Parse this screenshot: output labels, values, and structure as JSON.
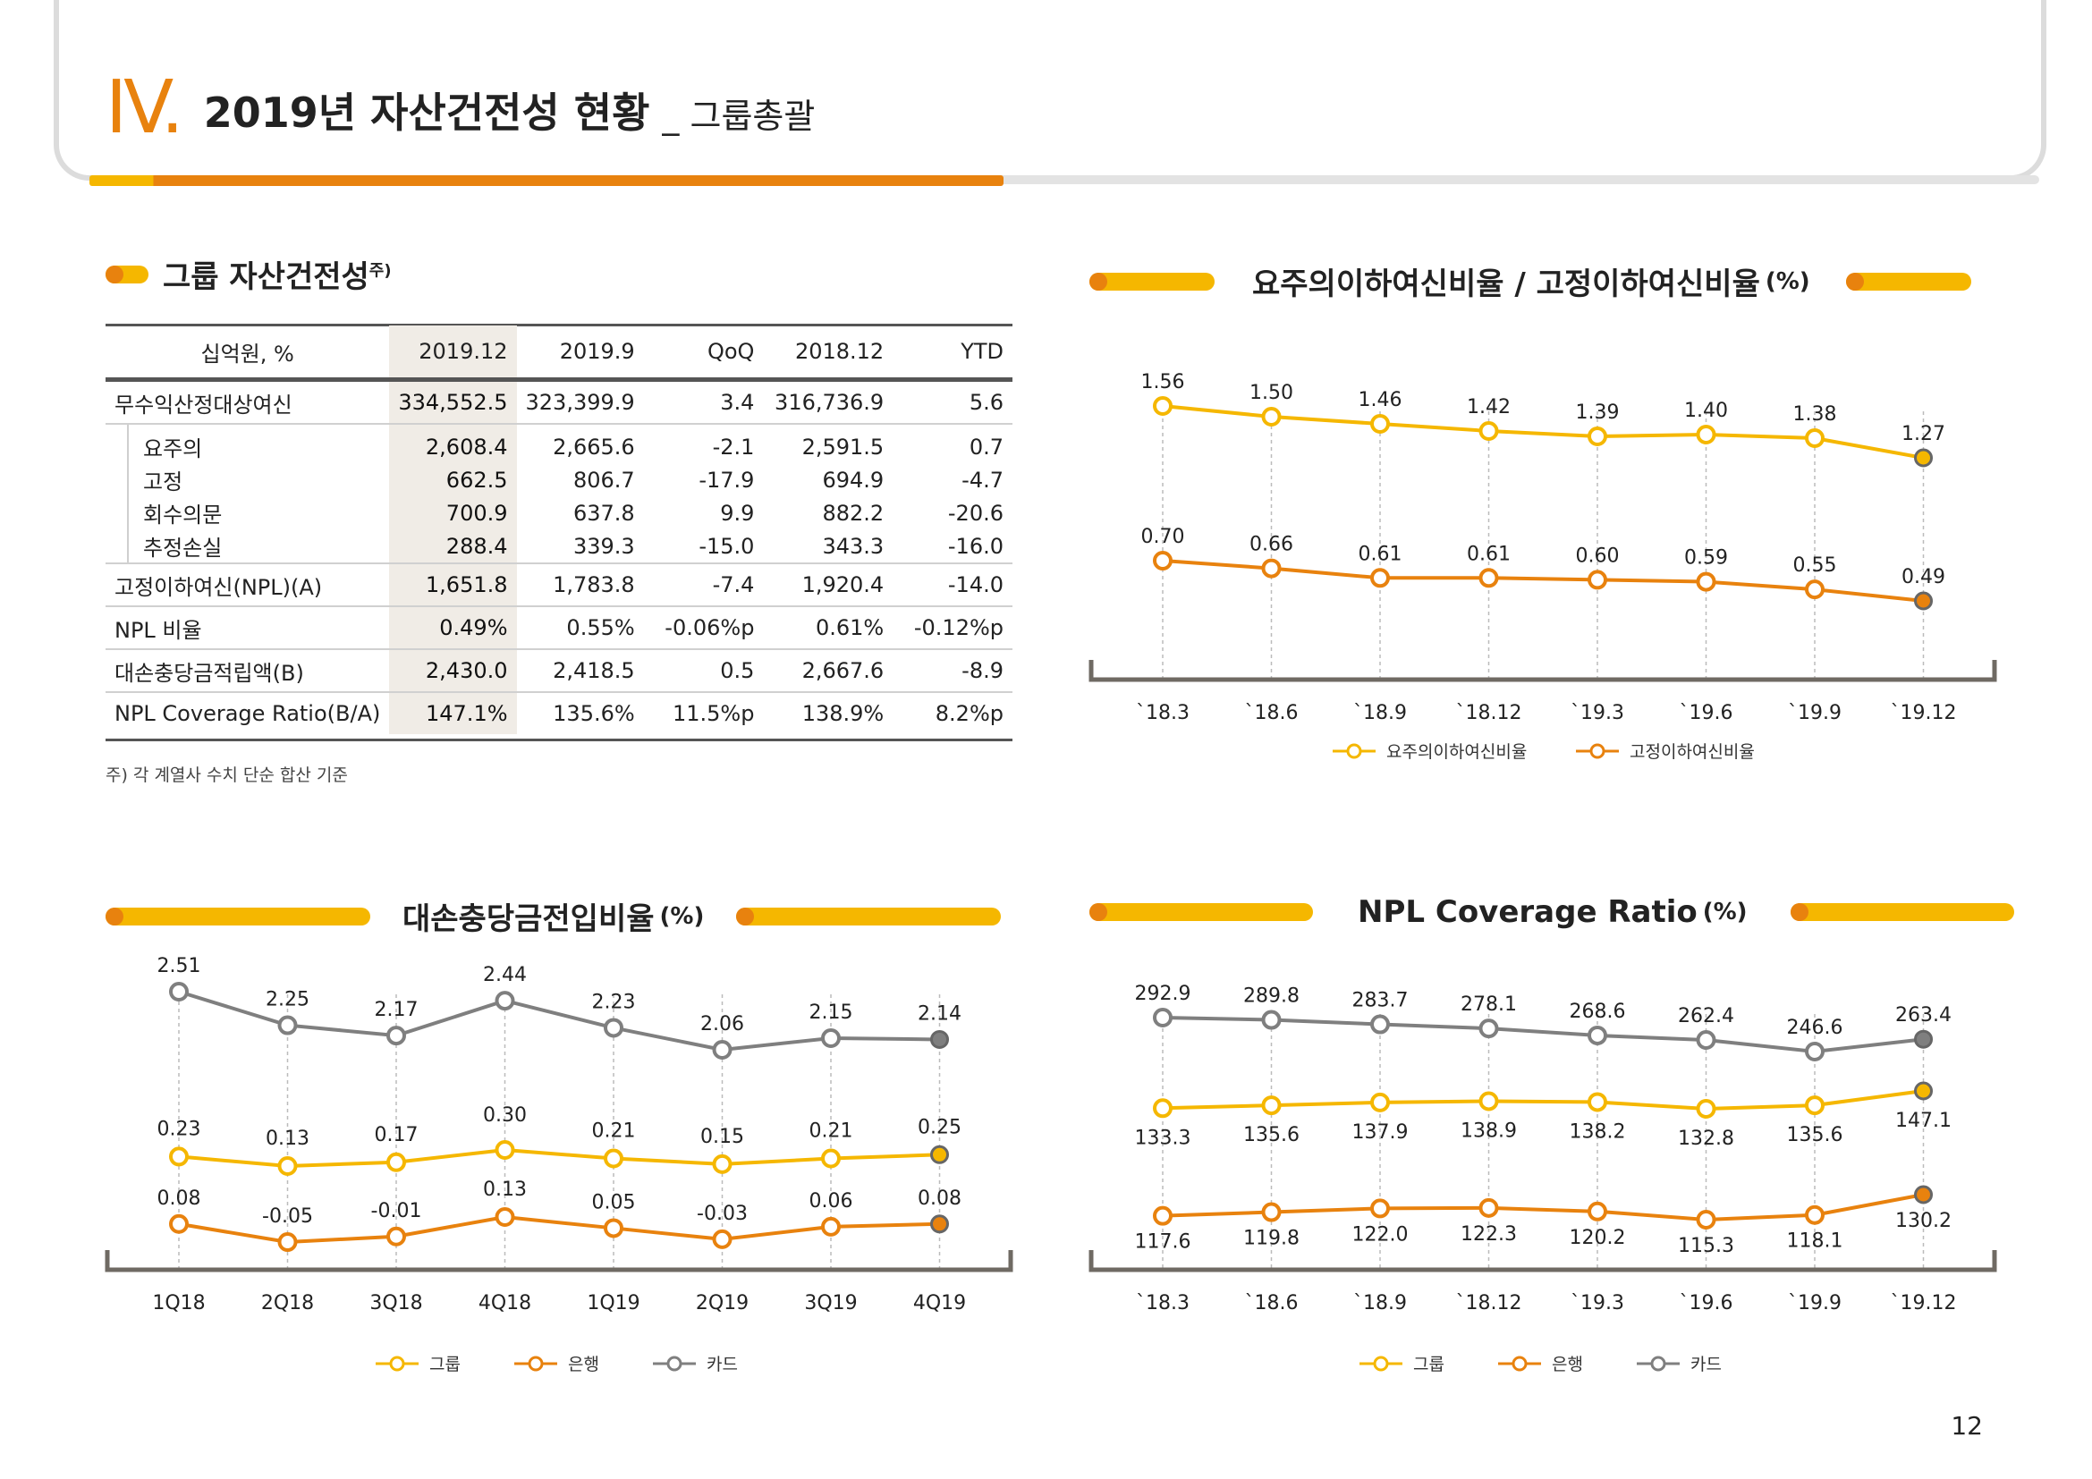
{
  "header": {
    "roman": "IV.",
    "title": "2019년 자산건전성 현황",
    "subtitle": "_ 그룹총괄"
  },
  "colors": {
    "yellow": "#f5b700",
    "orange": "#e8820e",
    "grey": "#7f7f7f",
    "dark": "#222222"
  },
  "table_section": {
    "title": "그룹 자산건전성",
    "sup": "주)",
    "note": "주) 각 계열사 수치 단순 합산 기준",
    "columns": [
      "십억원, %",
      "2019.12",
      "2019.9",
      "QoQ",
      "2018.12",
      "YTD"
    ],
    "rows": [
      {
        "label": "무수익산정대상여신",
        "values": [
          "334,552.5",
          "323,399.9",
          "3.4",
          "316,736.9",
          "5.6"
        ],
        "type": "main"
      },
      {
        "label": "요주의",
        "values": [
          "2,608.4",
          "2,665.6",
          "-2.1",
          "2,591.5",
          "0.7"
        ],
        "type": "sub"
      },
      {
        "label": "고정",
        "values": [
          "662.5",
          "806.7",
          "-17.9",
          "694.9",
          "-4.7"
        ],
        "type": "sub"
      },
      {
        "label": "회수의문",
        "values": [
          "700.9",
          "637.8",
          "9.9",
          "882.2",
          "-20.6"
        ],
        "type": "sub"
      },
      {
        "label": "추정손실",
        "values": [
          "288.4",
          "339.3",
          "-15.0",
          "343.3",
          "-16.0"
        ],
        "type": "sub"
      },
      {
        "label": "고정이하여신(NPL)(A)",
        "values": [
          "1,651.8",
          "1,783.8",
          "-7.4",
          "1,920.4",
          "-14.0"
        ],
        "type": "main"
      },
      {
        "label": "NPL 비율",
        "values": [
          "0.49%",
          "0.55%",
          "-0.06%p",
          "0.61%",
          "-0.12%p"
        ],
        "type": "main"
      },
      {
        "label": "대손충당금적립액(B)",
        "values": [
          "2,430.0",
          "2,418.5",
          "0.5",
          "2,667.6",
          "-8.9"
        ],
        "type": "main"
      },
      {
        "label": "NPL Coverage Ratio(B/A)",
        "values": [
          "147.1%",
          "135.6%",
          "11.5%p",
          "138.9%",
          "8.2%p"
        ],
        "type": "main"
      }
    ]
  },
  "chart_titles": {
    "c1": {
      "title": "요주의이하여신비율 / 고정이하여신비율",
      "unit": "(%)"
    },
    "c2": {
      "title": "대손충당금전입비율",
      "unit": "(%)"
    },
    "c3": {
      "title": "NPL Coverage Ratio",
      "unit": "(%)"
    }
  },
  "chart_data": [
    {
      "type": "line",
      "x": [
        "`18.3",
        "`18.6",
        "`18.9",
        "`18.12",
        "`19.3",
        "`19.6",
        "`19.9",
        "`19.12"
      ],
      "series": [
        {
          "name": "요주의이하여신비율",
          "values": [
            1.56,
            1.5,
            1.46,
            1.42,
            1.39,
            1.4,
            1.38,
            1.27
          ],
          "labels": [
            "1.56",
            "1.50",
            "1.46",
            "1.42",
            "1.39",
            "1.40",
            "1.38",
            "1.27"
          ],
          "color": "#f5b700"
        },
        {
          "name": "고정이하여신비율",
          "values": [
            0.7,
            0.66,
            0.61,
            0.61,
            0.6,
            0.59,
            0.55,
            0.49
          ],
          "labels": [
            "0.70",
            "0.66",
            "0.61",
            "0.61",
            "0.60",
            "0.59",
            "0.55",
            "0.49"
          ],
          "color": "#e8820e"
        }
      ]
    },
    {
      "type": "line",
      "x": [
        "1Q18",
        "2Q18",
        "3Q18",
        "4Q18",
        "1Q19",
        "2Q19",
        "3Q19",
        "4Q19"
      ],
      "series": [
        {
          "name": "그룹",
          "values": [
            0.23,
            0.13,
            0.17,
            0.3,
            0.21,
            0.15,
            0.21,
            0.25
          ],
          "labels": [
            "0.23",
            "0.13",
            "0.17",
            "0.30",
            "0.21",
            "0.15",
            "0.21",
            "0.25"
          ],
          "color": "#f5b700"
        },
        {
          "name": "은행",
          "values": [
            0.08,
            -0.05,
            -0.01,
            0.13,
            0.05,
            -0.03,
            0.06,
            0.08
          ],
          "labels": [
            "0.08",
            "-0.05",
            "-0.01",
            "0.13",
            "0.05",
            "-0.03",
            "0.06",
            "0.08"
          ],
          "color": "#e8820e"
        },
        {
          "name": "카드",
          "values": [
            2.51,
            2.25,
            2.17,
            2.44,
            2.23,
            2.06,
            2.15,
            2.14
          ],
          "labels": [
            "2.51",
            "2.25",
            "2.17",
            "2.44",
            "2.23",
            "2.06",
            "2.15",
            "2.14"
          ],
          "color": "#7f7f7f"
        }
      ]
    },
    {
      "type": "line",
      "x": [
        "`18.3",
        "`18.6",
        "`18.9",
        "`18.12",
        "`19.3",
        "`19.6",
        "`19.9",
        "`19.12"
      ],
      "series": [
        {
          "name": "그룹",
          "values": [
            133.3,
            135.6,
            137.9,
            138.9,
            138.2,
            132.8,
            135.6,
            147.1
          ],
          "labels": [
            "133.3",
            "135.6",
            "137.9",
            "138.9",
            "138.2",
            "132.8",
            "135.6",
            "147.1"
          ],
          "color": "#f5b700"
        },
        {
          "name": "은행",
          "values": [
            117.6,
            119.8,
            122.0,
            122.3,
            120.2,
            115.3,
            118.1,
            130.2
          ],
          "labels": [
            "117.6",
            "119.8",
            "122.0",
            "122.3",
            "120.2",
            "115.3",
            "118.1",
            "130.2"
          ],
          "color": "#e8820e"
        },
        {
          "name": "카드",
          "values": [
            292.9,
            289.8,
            283.7,
            278.1,
            268.6,
            262.4,
            246.6,
            263.4
          ],
          "labels": [
            "292.9",
            "289.8",
            "283.7",
            "278.1",
            "268.6",
            "262.4",
            "246.6",
            "263.4"
          ],
          "color": "#7f7f7f"
        }
      ]
    }
  ],
  "page_number": "12"
}
